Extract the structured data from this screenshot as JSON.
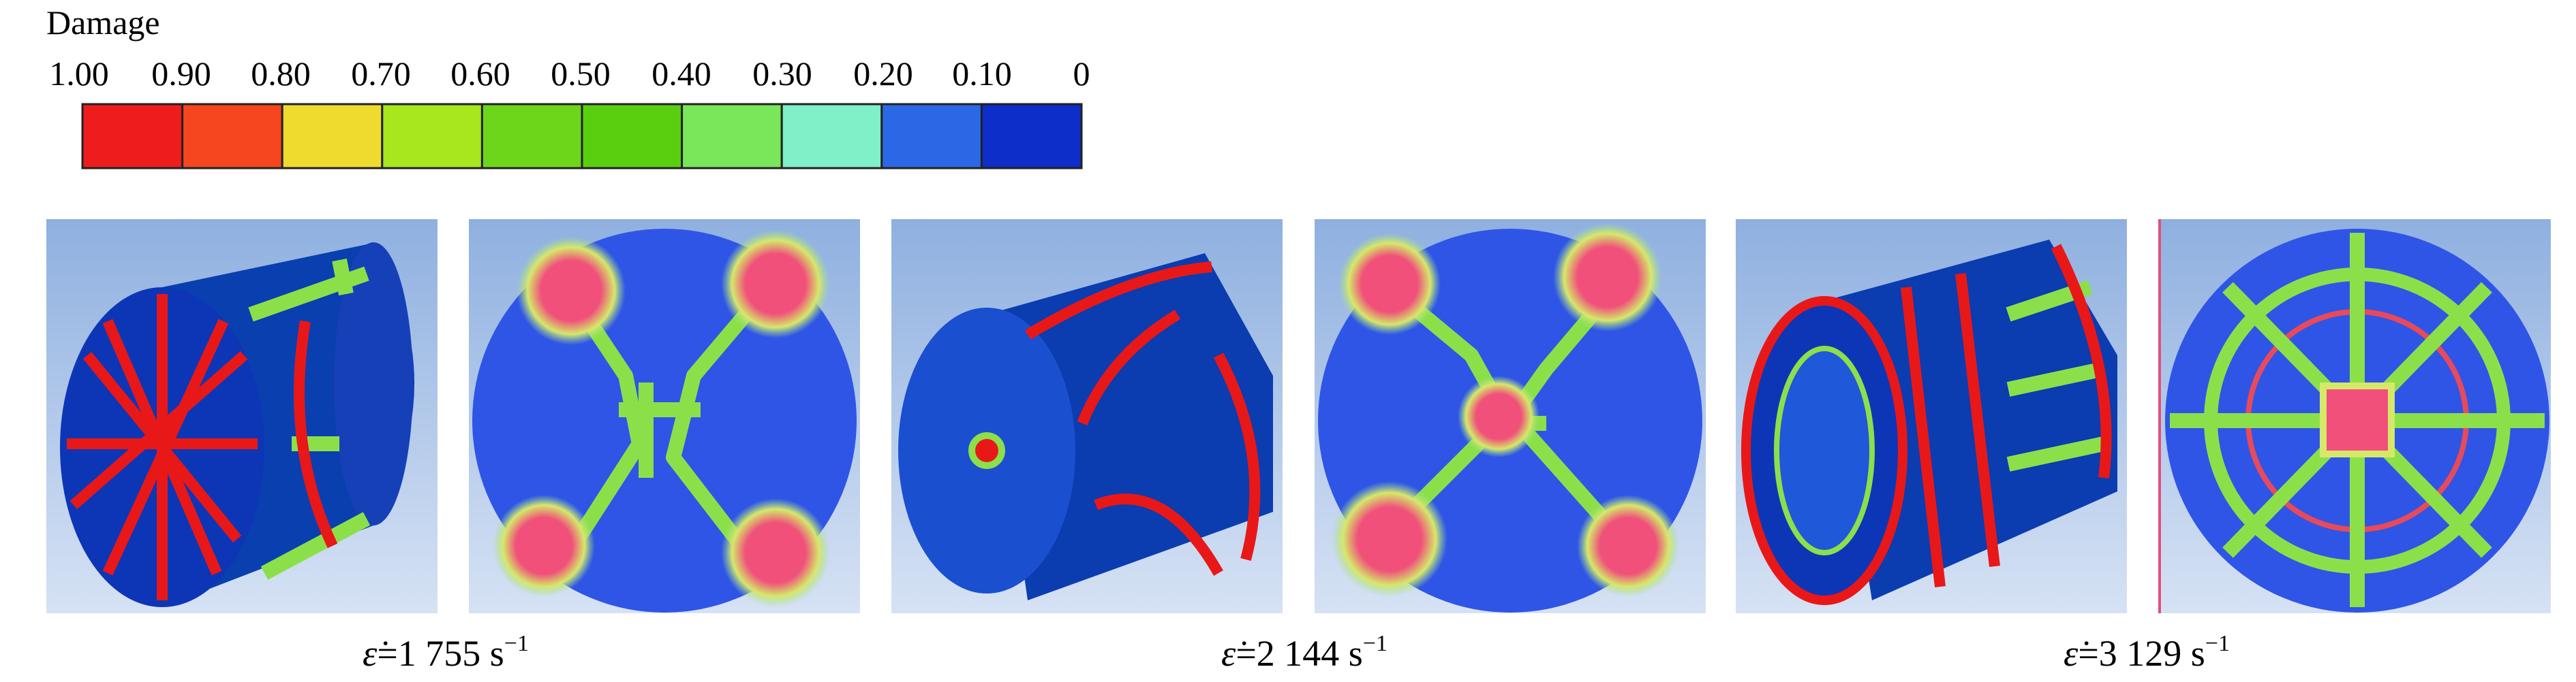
{
  "legend": {
    "title": "Damage",
    "ticks": [
      "1.00",
      "0.90",
      "0.80",
      "0.70",
      "0.60",
      "0.50",
      "0.40",
      "0.30",
      "0.20",
      "0.10",
      "0"
    ]
  },
  "captions": [
    {
      "symbol": "ε̇",
      "text": "=1 755 s",
      "exponent": "−1"
    },
    {
      "symbol": "ε̇",
      "text": "=2 144 s",
      "exponent": "−1"
    },
    {
      "symbol": "ε̇",
      "text": "=3 129 s",
      "exponent": "−1"
    }
  ]
}
